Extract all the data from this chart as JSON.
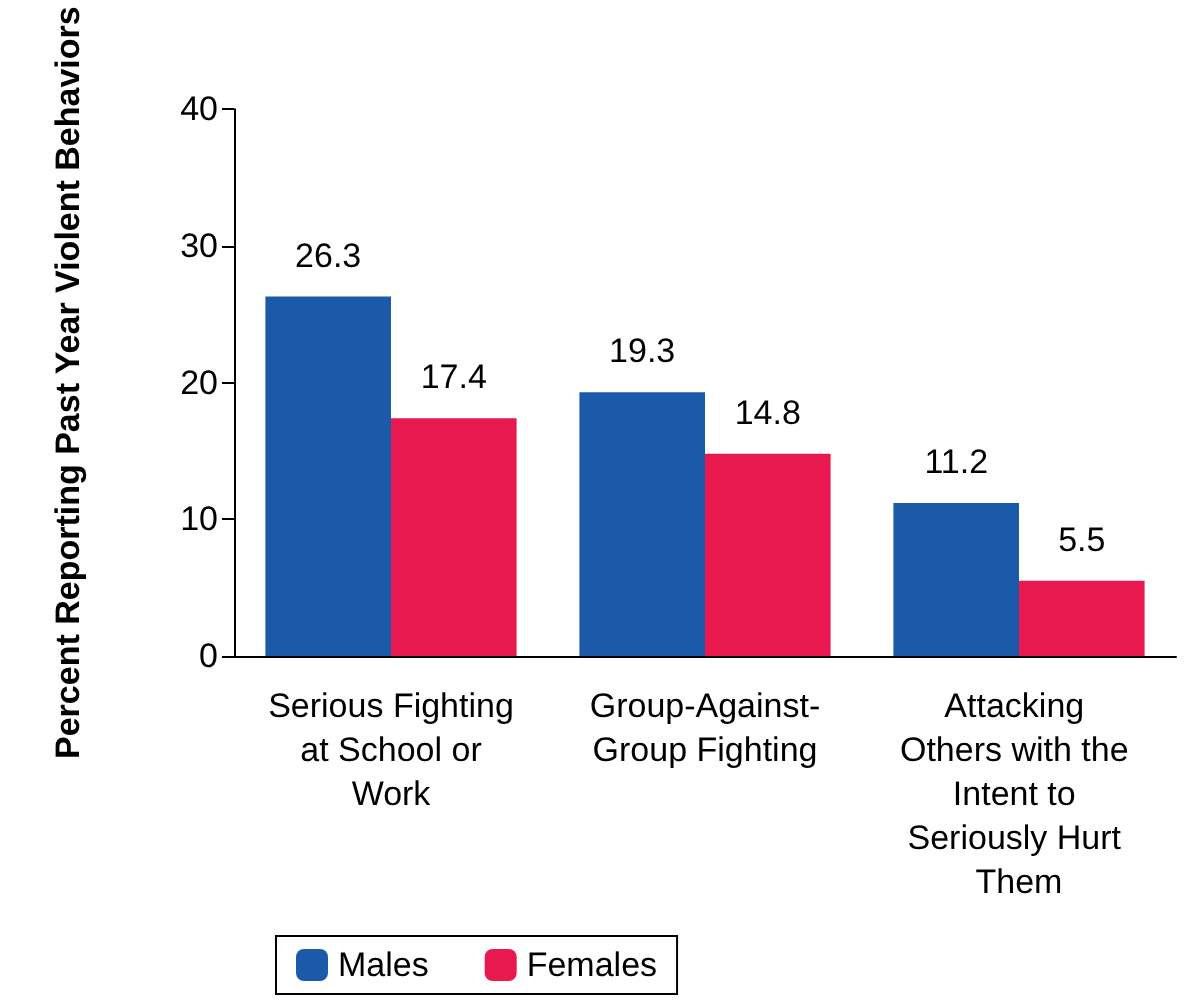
{
  "chart_data": {
    "type": "bar",
    "ylabel": "Percent Reporting Past Year Violent Behaviors",
    "categories": [
      "Serious Fighting at School or Work",
      "Group-Against-Group Fighting",
      "Attacking Others with the Intent to Seriously Hurt Them"
    ],
    "series": [
      {
        "name": "Males",
        "color": "#1a5aa8",
        "values": [
          26.3,
          19.3,
          11.2
        ]
      },
      {
        "name": "Females",
        "color": "#e8194f",
        "values": [
          17.4,
          14.8,
          5.5
        ]
      }
    ],
    "ylim": [
      0,
      40
    ],
    "yticks": [
      0,
      10,
      20,
      30,
      40
    ],
    "grid": false,
    "legend": "bottom left",
    "data_labels": true
  }
}
